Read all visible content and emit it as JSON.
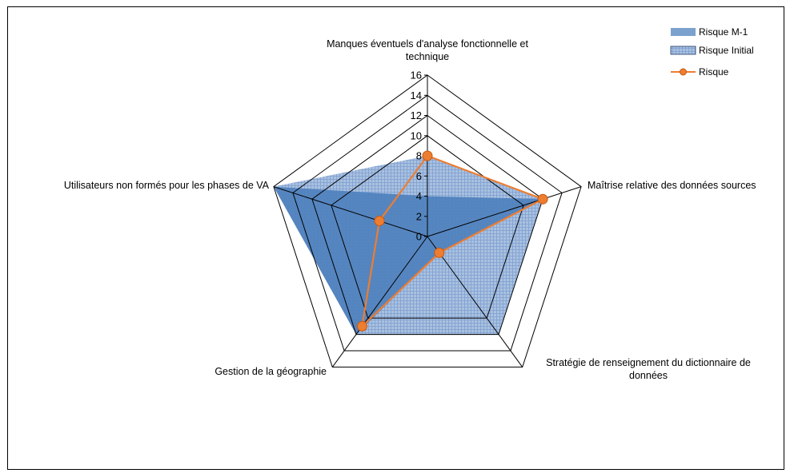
{
  "chart_data": {
    "type": "radar",
    "axes": [
      "Manques éventuels d'analyse fonctionnelle et technique",
      "Maîtrise relative des données sources",
      "Stratégie de renseignement du dictionnaire de données",
      "Gestion de la géographie",
      "Utilisateurs non formés pour les phases de VA"
    ],
    "axis_label_lines": [
      [
        "Manques éventuels d'analyse fonctionnelle et",
        "technique"
      ],
      [
        "Maîtrise relative des données sources"
      ],
      [
        "Stratégie de renseignement du dictionnaire de",
        "données"
      ],
      [
        "Gestion de la géographie"
      ],
      [
        "Utilisateurs non formés pour les phases de VA"
      ]
    ],
    "r_ticks": [
      "0",
      "2",
      "4",
      "6",
      "8",
      "10",
      "12",
      "14",
      "16"
    ],
    "r_range": [
      0,
      16
    ],
    "gridlines": [
      10,
      12,
      14,
      16
    ],
    "series": [
      {
        "name": "Risque M-1",
        "values": [
          4,
          12,
          2,
          12,
          16
        ],
        "style": "area",
        "color": "#4f81bd"
      },
      {
        "name": "Risque Initial",
        "values": [
          8,
          12,
          12,
          12,
          16
        ],
        "style": "area-hatched",
        "color": "#95b3d7"
      },
      {
        "name": "Risque",
        "values": [
          8,
          12,
          2,
          11,
          5
        ],
        "style": "line-markers",
        "color": "#ed7d31"
      }
    ],
    "legend_position": "top-right"
  }
}
